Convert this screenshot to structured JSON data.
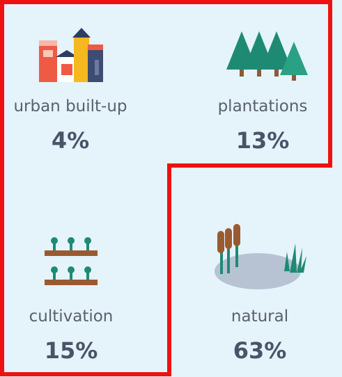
{
  "items": [
    {
      "label": "urban built-up",
      "value": "4%"
    },
    {
      "label": "plantations",
      "value": "13%"
    },
    {
      "label": "cultivation",
      "value": "15%"
    },
    {
      "label": "natural",
      "value": "63%"
    }
  ]
}
